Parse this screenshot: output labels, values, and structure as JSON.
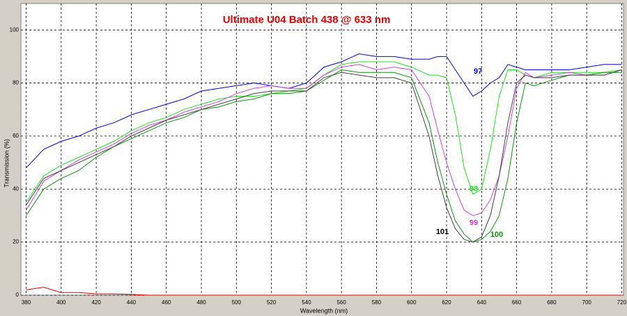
{
  "chart_data": {
    "type": "line",
    "title": "Ultimate U04 Batch 438 @ 633 nm",
    "x_label": "Wavelength (nm)",
    "y_label": "Transmission (%)",
    "xlim": [
      377,
      721
    ],
    "ylim": [
      0,
      110
    ],
    "xticks": [
      380,
      400,
      420,
      440,
      460,
      480,
      500,
      520,
      540,
      560,
      580,
      600,
      620,
      640,
      660,
      680,
      700,
      720
    ],
    "yticks": [
      0,
      20,
      40,
      60,
      80,
      100
    ],
    "grid": true,
    "x": [
      380,
      390,
      400,
      410,
      420,
      430,
      440,
      450,
      460,
      470,
      480,
      490,
      500,
      510,
      520,
      530,
      540,
      550,
      560,
      570,
      580,
      590,
      600,
      610,
      615,
      620,
      625,
      630,
      635,
      640,
      645,
      650,
      655,
      660,
      665,
      670,
      680,
      690,
      700,
      710,
      720
    ],
    "series": [
      {
        "name": "97",
        "color": "#0000e0",
        "values": [
          48,
          55,
          58,
          60,
          63,
          65,
          68,
          70,
          72,
          74,
          77,
          78,
          79,
          80,
          79,
          78,
          80,
          86,
          88,
          91,
          90,
          90,
          89,
          89,
          90,
          90,
          85,
          80,
          75,
          77,
          80,
          82,
          87,
          86,
          85,
          85,
          85,
          85,
          86,
          87,
          87
        ]
      },
      {
        "name": "98",
        "color": "#22e022",
        "values": [
          35,
          45,
          49,
          52,
          55,
          58,
          62,
          65,
          67,
          70,
          72,
          74,
          75,
          75,
          76,
          77,
          78,
          83,
          87,
          88,
          88,
          88,
          86,
          83,
          83,
          82,
          68,
          48,
          38,
          40,
          55,
          75,
          85,
          85,
          83,
          82,
          84,
          84,
          84,
          84,
          85
        ]
      },
      {
        "name": "99",
        "color": "#d040e0",
        "values": [
          32,
          43,
          47,
          51,
          54,
          57,
          61,
          64,
          66,
          69,
          71,
          73,
          76,
          78,
          79,
          78,
          78,
          83,
          86,
          87,
          85,
          86,
          85,
          75,
          62,
          50,
          40,
          32,
          30,
          31,
          36,
          45,
          60,
          78,
          84,
          82,
          83,
          84,
          83,
          83,
          85
        ]
      },
      {
        "name": "100",
        "color": "#109010",
        "values": [
          30,
          40,
          44,
          47,
          52,
          56,
          59,
          62,
          65,
          67,
          70,
          71,
          73,
          74,
          76,
          76,
          77,
          81,
          85,
          84,
          84,
          84,
          82,
          65,
          50,
          38,
          28,
          23,
          20,
          21,
          24,
          30,
          44,
          65,
          80,
          79,
          81,
          83,
          83,
          84,
          84
        ]
      },
      {
        "name": "101",
        "color": "#404040",
        "values": [
          34,
          44,
          47,
          50,
          53,
          56,
          60,
          63,
          66,
          68,
          70,
          72,
          74,
          76,
          77,
          77,
          77,
          82,
          84,
          83,
          82,
          82,
          80,
          60,
          45,
          33,
          25,
          21,
          20,
          22,
          30,
          45,
          65,
          80,
          83,
          82,
          82,
          83,
          83,
          83,
          85
        ]
      },
      {
        "color": "#e00000",
        "values": [
          2,
          3,
          1,
          1,
          0.5,
          0.5,
          0.3,
          0,
          0,
          0,
          0,
          0,
          0,
          0,
          0,
          0,
          0,
          0,
          0,
          0,
          0,
          0,
          0,
          0,
          0,
          0,
          0,
          0,
          0,
          0,
          0,
          0,
          0,
          0,
          0,
          0,
          0,
          0,
          0,
          0,
          0
        ]
      }
    ]
  }
}
